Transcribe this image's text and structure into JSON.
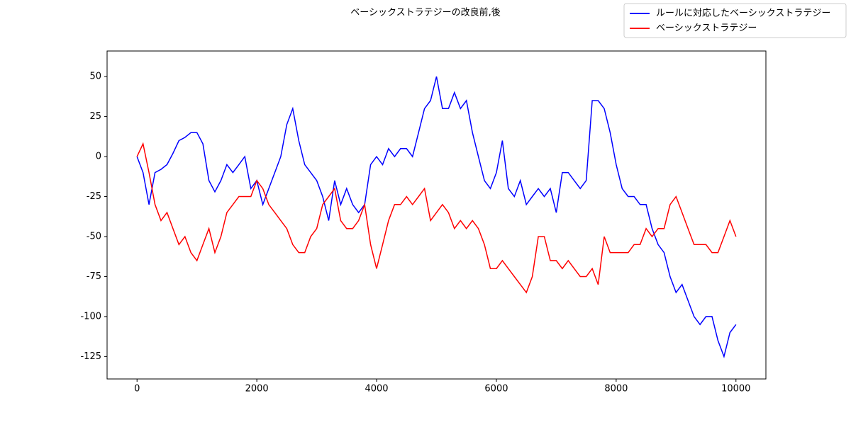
{
  "chart_data": {
    "type": "line",
    "title": "ベーシックストラテジーの改良前,後",
    "x": [
      0,
      100,
      200,
      300,
      400,
      500,
      600,
      700,
      800,
      900,
      1000,
      1100,
      1200,
      1300,
      1400,
      1500,
      1600,
      1700,
      1800,
      1900,
      2000,
      2100,
      2200,
      2300,
      2400,
      2500,
      2600,
      2700,
      2800,
      2900,
      3000,
      3100,
      3200,
      3300,
      3400,
      3500,
      3600,
      3700,
      3800,
      3900,
      4000,
      4100,
      4200,
      4300,
      4400,
      4500,
      4600,
      4700,
      4800,
      4900,
      5000,
      5100,
      5200,
      5300,
      5400,
      5500,
      5600,
      5700,
      5800,
      5900,
      6000,
      6100,
      6200,
      6300,
      6400,
      6500,
      6600,
      6700,
      6800,
      6900,
      7000,
      7100,
      7200,
      7300,
      7400,
      7500,
      7600,
      7700,
      7800,
      7900,
      8000,
      8100,
      8200,
      8300,
      8400,
      8500,
      8600,
      8700,
      8800,
      8900,
      9000,
      9100,
      9200,
      9300,
      9400,
      9500,
      9600,
      9700,
      9800,
      9900,
      10000
    ],
    "series": [
      {
        "name": "ルールに対応したベーシックストラテジー",
        "color": "#0000ff",
        "values": [
          0,
          -10,
          -30,
          -10,
          -8,
          -5,
          2,
          10,
          12,
          15,
          15,
          8,
          -15,
          -22,
          -15,
          -5,
          -10,
          -5,
          0,
          -20,
          -15,
          -30,
          -20,
          -10,
          0,
          20,
          30,
          10,
          -5,
          -10,
          -15,
          -25,
          -40,
          -15,
          -30,
          -20,
          -30,
          -35,
          -30,
          -5,
          0,
          -5,
          5,
          0,
          5,
          5,
          0,
          15,
          30,
          35,
          50,
          30,
          30,
          40,
          30,
          35,
          15,
          0,
          -15,
          -20,
          -10,
          10,
          -20,
          -25,
          -15,
          -30,
          -25,
          -20,
          -25,
          -20,
          -35,
          -10,
          -10,
          -15,
          -20,
          -15,
          35,
          35,
          30,
          15,
          -5,
          -20,
          -25,
          -25,
          -30,
          -30,
          -45,
          -55,
          -60,
          -75,
          -85,
          -80,
          -90,
          -100,
          -105,
          -100,
          -100,
          -115,
          -125,
          -110,
          -105
        ]
      },
      {
        "name": "ベーシックストラテジー",
        "color": "#ff0000",
        "values": [
          0,
          8,
          -10,
          -30,
          -40,
          -35,
          -45,
          -55,
          -50,
          -60,
          -65,
          -55,
          -45,
          -60,
          -50,
          -35,
          -30,
          -25,
          -25,
          -25,
          -15,
          -20,
          -30,
          -35,
          -40,
          -45,
          -55,
          -60,
          -60,
          -50,
          -45,
          -30,
          -25,
          -20,
          -40,
          -45,
          -45,
          -40,
          -30,
          -55,
          -70,
          -55,
          -40,
          -30,
          -30,
          -25,
          -30,
          -25,
          -20,
          -40,
          -35,
          -30,
          -35,
          -45,
          -40,
          -45,
          -40,
          -45,
          -55,
          -70,
          -70,
          -65,
          -70,
          -75,
          -80,
          -85,
          -75,
          -50,
          -50,
          -65,
          -65,
          -70,
          -65,
          -70,
          -75,
          -75,
          -70,
          -80,
          -50,
          -60,
          -60,
          -60,
          -60,
          -55,
          -55,
          -45,
          -50,
          -45,
          -45,
          -30,
          -25,
          -35,
          -45,
          -55,
          -55,
          -55,
          -60,
          -60,
          -50,
          -40,
          -50
        ]
      }
    ],
    "xlim": [
      -500,
      10500
    ],
    "ylim": [
      -139,
      66
    ],
    "xticks": [
      0,
      2000,
      4000,
      6000,
      8000,
      10000
    ],
    "yticks": [
      -125,
      -100,
      -75,
      -50,
      -25,
      0,
      25,
      50
    ],
    "legend": "upper right",
    "grid": false
  }
}
